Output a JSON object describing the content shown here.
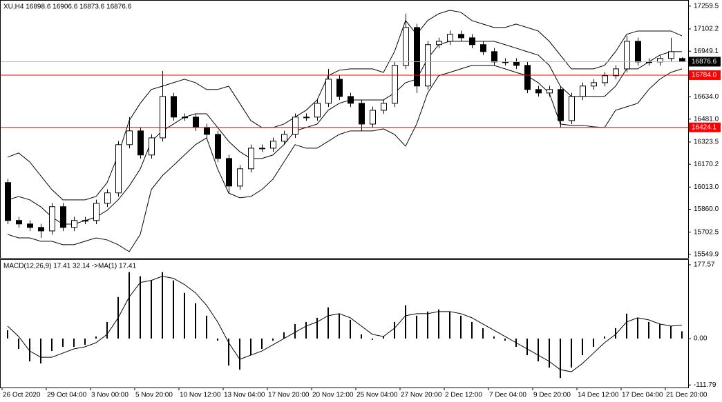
{
  "chart_data": [
    {
      "type": "candlestick",
      "title": "XU,H4  16898.6 16906.6 16873.6 16876.6",
      "open": [
        16044,
        15783,
        15759,
        15735,
        15711,
        15878,
        15735,
        15783,
        15783,
        15901,
        15973,
        16305,
        16400,
        16234,
        16352,
        16637,
        16495,
        16495,
        16424,
        16376,
        16210,
        16020,
        16139,
        16281,
        16281,
        16329,
        16376,
        16495,
        16495,
        16590,
        16756,
        16637,
        16590,
        16447,
        16542,
        16590,
        16851,
        17112,
        16709,
        16994,
        17017,
        17065,
        17041,
        16994,
        16946,
        16875,
        16875,
        16851,
        16685,
        16661,
        16685,
        16471,
        16637,
        16709,
        16732,
        16780,
        16827,
        17017,
        16875,
        16875,
        16899,
        16898.6
      ],
      "high": [
        16069,
        15808,
        15784,
        15760,
        15903,
        15903,
        15808,
        15808,
        15926,
        15998,
        16330,
        16495,
        16425,
        16377,
        16813,
        16662,
        16520,
        16520,
        16449,
        16401,
        16235,
        16164,
        16306,
        16306,
        16354,
        16401,
        16520,
        16520,
        16615,
        16827,
        16781,
        16662,
        16615,
        16567,
        16615,
        16876,
        17207,
        17137,
        17019,
        17042,
        17090,
        17090,
        17066,
        17019,
        16971,
        16900,
        16900,
        16876,
        16710,
        16710,
        16710,
        16662,
        16734,
        16757,
        16805,
        16852,
        17055,
        17042,
        16900,
        16924,
        17041,
        16906.6
      ],
      "low": [
        15758,
        15734,
        15710,
        15663,
        15686,
        15710,
        15710,
        15758,
        15758,
        15876,
        15948,
        16280,
        16209,
        16209,
        16327,
        16470,
        16470,
        16399,
        16351,
        16185,
        15972,
        15995,
        16114,
        16256,
        16256,
        16304,
        16351,
        16470,
        16470,
        16565,
        16612,
        16565,
        16400,
        16422,
        16517,
        16565,
        16826,
        16661,
        16684,
        16969,
        16992,
        17016,
        16969,
        16921,
        16850,
        16850,
        16826,
        16660,
        16636,
        16636,
        16423,
        16446,
        16612,
        16684,
        16707,
        16755,
        16802,
        16850,
        16850,
        16850,
        16874,
        16873.6
      ],
      "close": [
        15783,
        15759,
        15735,
        15711,
        15878,
        15735,
        15783,
        15783,
        15901,
        15973,
        16305,
        16400,
        16234,
        16352,
        16637,
        16495,
        16495,
        16424,
        16376,
        16210,
        16020,
        16139,
        16281,
        16281,
        16329,
        16376,
        16495,
        16495,
        16590,
        16756,
        16637,
        16590,
        16447,
        16542,
        16590,
        16851,
        17112,
        16709,
        16994,
        17017,
        17065,
        17041,
        16994,
        16946,
        16875,
        16875,
        16851,
        16685,
        16661,
        16685,
        16471,
        16637,
        16709,
        16732,
        16780,
        16827,
        17017,
        16875,
        16875,
        16899,
        16946,
        16876.6
      ],
      "bands": {
        "color": "#000000",
        "upper": [
          16219,
          16248,
          16186,
          16091,
          15996,
          15925,
          15925,
          15925,
          15948,
          16043,
          16234,
          16471,
          16590,
          16685,
          16708,
          16732,
          16756,
          16732,
          16685,
          16685,
          16708,
          16590,
          16471,
          16423,
          16423,
          16447,
          16495,
          16542,
          16613,
          16780,
          16818,
          16827,
          16827,
          16827,
          16803,
          16946,
          17160,
          17065,
          17160,
          17207,
          17231,
          17217,
          17160,
          17136,
          17112,
          17112,
          17136,
          17112,
          17088,
          17017,
          16922,
          16827,
          16827,
          16827,
          16851,
          16946,
          17065,
          17088,
          17088,
          17088,
          17088,
          17055
        ],
        "middle": [
          15925,
          15948,
          15925,
          15877,
          15806,
          15758,
          15758,
          15782,
          15806,
          15853,
          15925,
          16020,
          16138,
          16328,
          16400,
          16447,
          16495,
          16518,
          16518,
          16423,
          16328,
          16257,
          16210,
          16210,
          16234,
          16305,
          16400,
          16423,
          16447,
          16542,
          16590,
          16613,
          16613,
          16613,
          16613,
          16661,
          16732,
          16756,
          16898,
          16994,
          17017,
          17017,
          17017,
          17017,
          17017,
          16994,
          16970,
          16946,
          16922,
          16851,
          16708,
          16637,
          16637,
          16637,
          16637,
          16708,
          16827,
          16827,
          16875,
          16922,
          16946,
          16946
        ],
        "lower": [
          15687,
          15663,
          15663,
          15640,
          15640,
          15616,
          15616,
          15640,
          15663,
          15649,
          15616,
          15568,
          15687,
          15996,
          16091,
          16162,
          16234,
          16305,
          16352,
          16138,
          15972,
          15939,
          15948,
          15996,
          16067,
          16186,
          16305,
          16281,
          16281,
          16328,
          16376,
          16400,
          16400,
          16400,
          16414,
          16376,
          16295,
          16447,
          16661,
          16780,
          16803,
          16827,
          16851,
          16851,
          16851,
          16827,
          16803,
          16780,
          16732,
          16661,
          16447,
          16438,
          16438,
          16428,
          16423,
          16542,
          16566,
          16590,
          16685,
          16756,
          16803,
          16827
        ]
      },
      "ylim": [
        15530,
        17292
      ],
      "yticks": [
        17259.5,
        17102.2,
        16949.1,
        {
          "value": 16634.0,
          "label": "16634.0"
        },
        {
          "value": 16481.0,
          "label": "16481.0"
        },
        16323.5,
        16170.2,
        {
          "value": 16013.0,
          "label": "16013.0"
        },
        {
          "value": 15860.0,
          "label": "15860.0"
        },
        15702.5,
        15549.9
      ],
      "hlines": [
        {
          "value": 16784.0,
          "label": "16784.0",
          "color": "#ff0000"
        },
        {
          "value": 16424.1,
          "label": "16424.1",
          "color": "#ff0000"
        }
      ],
      "last_price": 16876.6
    },
    {
      "type": "macd",
      "title": "MACD(12,26,9) 17.41 32.14  ->MA(1) 17.41",
      "histogram": [
        20,
        -25,
        -55,
        -60,
        -30,
        -20,
        -20,
        -15,
        5,
        40,
        100,
        160,
        150,
        140,
        160,
        140,
        110,
        85,
        55,
        -5,
        -65,
        -75,
        -40,
        -25,
        -5,
        15,
        35,
        40,
        50,
        75,
        60,
        45,
        10,
        -3,
        5,
        40,
        80,
        55,
        65,
        70,
        65,
        55,
        40,
        25,
        5,
        -5,
        -20,
        -40,
        -55,
        -70,
        -95,
        -70,
        -40,
        -20,
        5,
        25,
        60,
        50,
        40,
        35,
        30,
        17.41
      ],
      "signal": [
        30,
        5,
        -30,
        -45,
        -45,
        -35,
        -25,
        -20,
        -10,
        10,
        50,
        100,
        135,
        140,
        150,
        145,
        130,
        110,
        80,
        40,
        -10,
        -50,
        -40,
        -30,
        -15,
        0,
        15,
        30,
        40,
        55,
        60,
        50,
        30,
        10,
        5,
        25,
        55,
        60,
        60,
        65,
        65,
        60,
        50,
        35,
        20,
        5,
        -10,
        -25,
        -40,
        -55,
        -75,
        -80,
        -60,
        -35,
        -10,
        10,
        40,
        50,
        45,
        35,
        30,
        32.14
      ],
      "color": "#000000",
      "ylim": [
        -117.9,
        189.2
      ],
      "yticks": [
        177.57,
        {
          "value": 0,
          "label": "0.00"
        },
        -111.79
      ],
      "xticks": [
        {
          "value": 0,
          "label": "26 Oct 2020"
        },
        {
          "value": 4,
          "label": "29 Oct 04:00"
        },
        {
          "value": 8,
          "label": "3 Nov 00:00"
        },
        {
          "value": 12,
          "label": "5 Nov 20:00"
        },
        {
          "value": 16,
          "label": "10 Nov 12:00"
        },
        {
          "value": 20,
          "label": "13 Nov 04:00"
        },
        {
          "value": 24,
          "label": "17 Nov 20:00"
        },
        {
          "value": 28,
          "label": "20 Nov 12:00"
        },
        {
          "value": 32,
          "label": "25 Nov 04:00"
        },
        {
          "value": 36,
          "label": "27 Nov 20:00"
        },
        {
          "value": 40,
          "label": "2 Dec 12:00"
        },
        {
          "value": 44,
          "label": "7 Dec 04:00"
        },
        {
          "value": 48,
          "label": "9 Dec 20:00"
        },
        {
          "value": 52,
          "label": "14 Dec 12:00"
        },
        {
          "value": 56,
          "label": "17 Dec 04:00"
        },
        {
          "value": 60,
          "label": "21 Dec 20:00"
        }
      ]
    }
  ]
}
